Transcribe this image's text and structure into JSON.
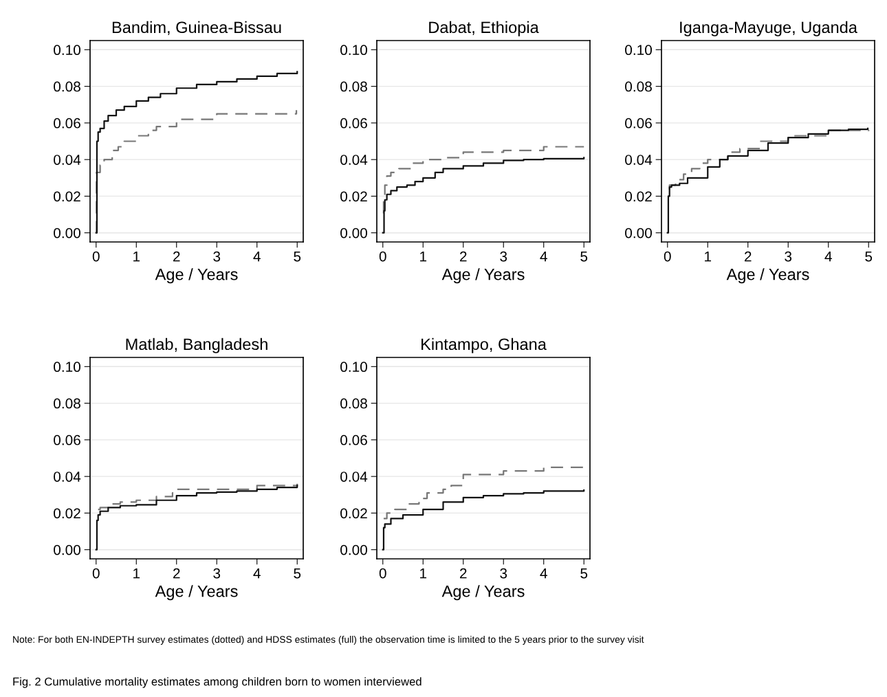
{
  "chart_data": [
    {
      "type": "step",
      "title": "Bandim, Guinea-Bissau",
      "xlabel": "Age / Years",
      "xlim": [
        -0.15,
        5.15
      ],
      "xticks": [
        0,
        1,
        2,
        3,
        4,
        5
      ],
      "ylim": [
        -0.005,
        0.105
      ],
      "yticks": [
        {
          "value": 0,
          "label": "0.00"
        },
        {
          "value": 0.02,
          "label": "0.02"
        },
        {
          "value": 0.04,
          "label": "0.04"
        },
        {
          "value": 0.06,
          "label": "0.06"
        },
        {
          "value": 0.08,
          "label": "0.08"
        },
        {
          "value": 0.1,
          "label": "0.10"
        }
      ],
      "grid": "y",
      "line_style": "solid",
      "series": [
        {
          "color": "#777777",
          "line_style": "dashed",
          "x": [
            0,
            0.01,
            0.1,
            0.2,
            0.4,
            0.55,
            0.7,
            1,
            1.3,
            1.5,
            2,
            3,
            4.98
          ],
          "values": [
            0,
            0.033,
            0.037,
            0.04,
            0.045,
            0.047,
            0.05,
            0.053,
            0.056,
            0.058,
            0.062,
            0.065,
            0.067
          ]
        },
        {
          "color": "#111111",
          "x": [
            0,
            0.02,
            0.05,
            0.1,
            0.2,
            0.3,
            0.5,
            0.7,
            1,
            1.3,
            1.6,
            2,
            2.5,
            3,
            3.5,
            4,
            4.5,
            5
          ],
          "values": [
            0,
            0.05,
            0.055,
            0.057,
            0.061,
            0.064,
            0.067,
            0.069,
            0.072,
            0.074,
            0.076,
            0.079,
            0.081,
            0.0825,
            0.084,
            0.0855,
            0.087,
            0.088
          ]
        }
      ]
    },
    {
      "type": "step",
      "title": "Dabat, Ethiopia",
      "xlabel": "Age / Years",
      "xlim": [
        -0.15,
        5.15
      ],
      "xticks": [
        0,
        1,
        2,
        3,
        4,
        5
      ],
      "ylim": [
        -0.005,
        0.105
      ],
      "yticks": [
        {
          "value": 0,
          "label": "0.00"
        },
        {
          "value": 0.02,
          "label": "0.02"
        },
        {
          "value": 0.04,
          "label": "0.04"
        },
        {
          "value": 0.06,
          "label": "0.06"
        },
        {
          "value": 0.08,
          "label": "0.08"
        },
        {
          "value": 0.1,
          "label": "0.10"
        }
      ],
      "grid": "y",
      "line_style": "solid",
      "series": [
        {
          "color": "#777777",
          "line_style": "dashed",
          "x": [
            0,
            0.02,
            0.05,
            0.1,
            0.2,
            0.4,
            0.7,
            1,
            1.5,
            2,
            3,
            4,
            5
          ],
          "values": [
            0.011,
            0.018,
            0.026,
            0.031,
            0.033,
            0.035,
            0.038,
            0.04,
            0.041,
            0.044,
            0.045,
            0.047,
            0.047
          ]
        },
        {
          "color": "#111111",
          "x": [
            0,
            0.03,
            0.05,
            0.1,
            0.2,
            0.35,
            0.6,
            0.8,
            1,
            1.3,
            1.5,
            2,
            2.5,
            3,
            3.5,
            4,
            5
          ],
          "values": [
            0,
            0.012,
            0.018,
            0.021,
            0.023,
            0.025,
            0.026,
            0.028,
            0.03,
            0.033,
            0.035,
            0.0365,
            0.038,
            0.0395,
            0.04,
            0.0405,
            0.041
          ]
        }
      ]
    },
    {
      "type": "step",
      "title": "Iganga-Mayuge, Uganda",
      "xlabel": "Age / Years",
      "xlim": [
        -0.15,
        5.15
      ],
      "xticks": [
        0,
        1,
        2,
        3,
        4,
        5
      ],
      "ylim": [
        -0.005,
        0.105
      ],
      "yticks": [
        {
          "value": 0,
          "label": "0.00"
        },
        {
          "value": 0.02,
          "label": "0.02"
        },
        {
          "value": 0.04,
          "label": "0.04"
        },
        {
          "value": 0.06,
          "label": "0.06"
        },
        {
          "value": 0.08,
          "label": "0.08"
        },
        {
          "value": 0.1,
          "label": "0.10"
        }
      ],
      "grid": "y",
      "line_style": "solid",
      "series": [
        {
          "color": "#777777",
          "line_style": "dashed",
          "x": [
            0.03,
            0.05,
            0.2,
            0.4,
            0.6,
            0.8,
            1,
            1.5,
            1.8,
            2.3,
            3,
            4,
            5
          ],
          "values": [
            0.024,
            0.026,
            0.029,
            0.032,
            0.035,
            0.038,
            0.04,
            0.044,
            0.046,
            0.05,
            0.053,
            0.056,
            0.0555
          ]
        },
        {
          "color": "#111111",
          "x": [
            0,
            0.02,
            0.05,
            0.1,
            0.3,
            0.5,
            1,
            1.3,
            1.5,
            2,
            2.5,
            3,
            3.5,
            4,
            4.5,
            4.98
          ],
          "values": [
            0,
            0.02,
            0.025,
            0.026,
            0.027,
            0.03,
            0.036,
            0.04,
            0.042,
            0.045,
            0.049,
            0.052,
            0.054,
            0.056,
            0.0565,
            0.057
          ]
        }
      ]
    },
    {
      "type": "step",
      "title": "Matlab, Bangladesh",
      "xlabel": "Age / Years",
      "xlim": [
        -0.15,
        5.15
      ],
      "xticks": [
        0,
        1,
        2,
        3,
        4,
        5
      ],
      "ylim": [
        -0.005,
        0.105
      ],
      "yticks": [
        {
          "value": 0,
          "label": "0.00"
        },
        {
          "value": 0.02,
          "label": "0.02"
        },
        {
          "value": 0.04,
          "label": "0.04"
        },
        {
          "value": 0.06,
          "label": "0.06"
        },
        {
          "value": 0.08,
          "label": "0.08"
        },
        {
          "value": 0.1,
          "label": "0.10"
        }
      ],
      "grid": "y",
      "line_style": "solid",
      "series": [
        {
          "color": "#777777",
          "line_style": "dashed",
          "x": [
            0.05,
            0.1,
            0.3,
            0.6,
            1,
            1.5,
            1.9,
            2,
            3,
            4,
            5
          ],
          "values": [
            0.022,
            0.023,
            0.025,
            0.026,
            0.027,
            0.029,
            0.031,
            0.033,
            0.033,
            0.035,
            0.036
          ]
        },
        {
          "color": "#111111",
          "x": [
            0,
            0.02,
            0.05,
            0.1,
            0.3,
            0.6,
            1,
            1.5,
            2,
            2.5,
            3,
            3.5,
            4,
            4.5,
            5
          ],
          "values": [
            0,
            0.016,
            0.019,
            0.021,
            0.023,
            0.024,
            0.0245,
            0.027,
            0.0295,
            0.031,
            0.0315,
            0.032,
            0.033,
            0.034,
            0.035
          ]
        }
      ]
    },
    {
      "type": "step",
      "title": "Kintampo, Ghana",
      "xlabel": "Age / Years",
      "xlim": [
        -0.15,
        5.15
      ],
      "xticks": [
        0,
        1,
        2,
        3,
        4,
        5
      ],
      "ylim": [
        -0.005,
        0.105
      ],
      "yticks": [
        {
          "value": 0,
          "label": "0.00"
        },
        {
          "value": 0.02,
          "label": "0.02"
        },
        {
          "value": 0.04,
          "label": "0.04"
        },
        {
          "value": 0.06,
          "label": "0.06"
        },
        {
          "value": 0.08,
          "label": "0.08"
        },
        {
          "value": 0.1,
          "label": "0.10"
        }
      ],
      "grid": "y",
      "line_style": "solid",
      "series": [
        {
          "color": "#777777",
          "line_style": "dashed",
          "x": [
            0.02,
            0.1,
            0.3,
            0.6,
            0.9,
            1.1,
            1.5,
            1.7,
            2,
            3,
            4,
            5
          ],
          "values": [
            0.017,
            0.02,
            0.022,
            0.025,
            0.028,
            0.031,
            0.033,
            0.035,
            0.041,
            0.043,
            0.045,
            0.046
          ]
        },
        {
          "color": "#111111",
          "x": [
            0,
            0.02,
            0.05,
            0.2,
            0.5,
            1,
            1.5,
            2,
            2.5,
            3,
            3.5,
            4,
            5
          ],
          "values": [
            0,
            0.012,
            0.014,
            0.017,
            0.019,
            0.022,
            0.026,
            0.0285,
            0.0295,
            0.0305,
            0.031,
            0.032,
            0.0325
          ]
        }
      ],
      "annotations": [
        "Note: For both EN-INDEPTH survey estimates (dotted) and HDSS estimates (full) the observation time is limited to the 5 years prior to the survey visit",
        "Fig. 2 Cumulative mortality estimates among children born to women interviewed"
      ]
    }
  ]
}
